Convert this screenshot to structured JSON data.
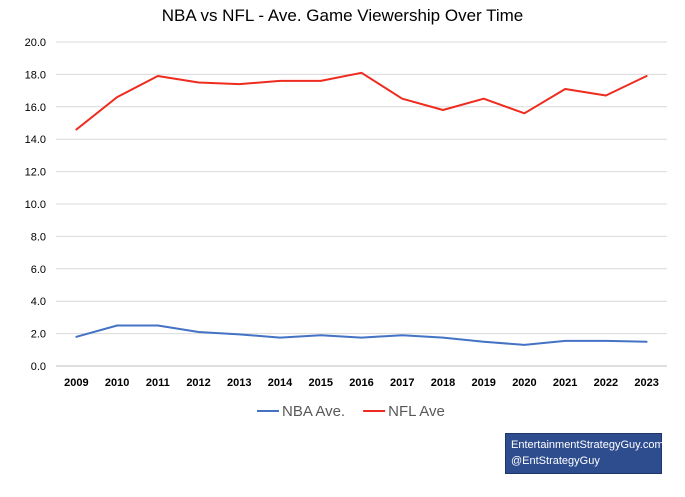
{
  "chart_data": {
    "type": "line",
    "title": "NBA vs NFL - Ave. Game Viewership Over Time",
    "xlabel": "",
    "ylabel": "",
    "x": [
      "2009",
      "2010",
      "2011",
      "2012",
      "2013",
      "2014",
      "2015",
      "2016",
      "2017",
      "2018",
      "2019",
      "2020",
      "2021",
      "2022",
      "2023"
    ],
    "ylim": [
      0,
      20
    ],
    "ytick_labels": [
      "0.0",
      "2.0",
      "4.0",
      "6.0",
      "8.0",
      "10.0",
      "12.0",
      "14.0",
      "16.0",
      "18.0",
      "20.0"
    ],
    "grid": true,
    "legend_placement": "bottom",
    "series": [
      {
        "name": "NBA Ave.",
        "color": "#4472c4",
        "values": [
          1.8,
          2.5,
          2.5,
          2.1,
          1.95,
          1.75,
          1.9,
          1.75,
          1.9,
          1.75,
          1.5,
          1.3,
          1.55,
          1.55,
          1.5
        ]
      },
      {
        "name": "NFL Ave",
        "color": "#ee2b1e",
        "values": [
          14.6,
          16.6,
          17.9,
          17.5,
          17.4,
          17.6,
          17.6,
          18.1,
          16.5,
          15.8,
          16.5,
          15.6,
          17.1,
          16.7,
          17.9
        ]
      }
    ]
  },
  "credit": {
    "line1": "EntertainmentStrategyGuy.com",
    "line2": "@EntStrategyGuy",
    "background": "#2e4d8f"
  }
}
